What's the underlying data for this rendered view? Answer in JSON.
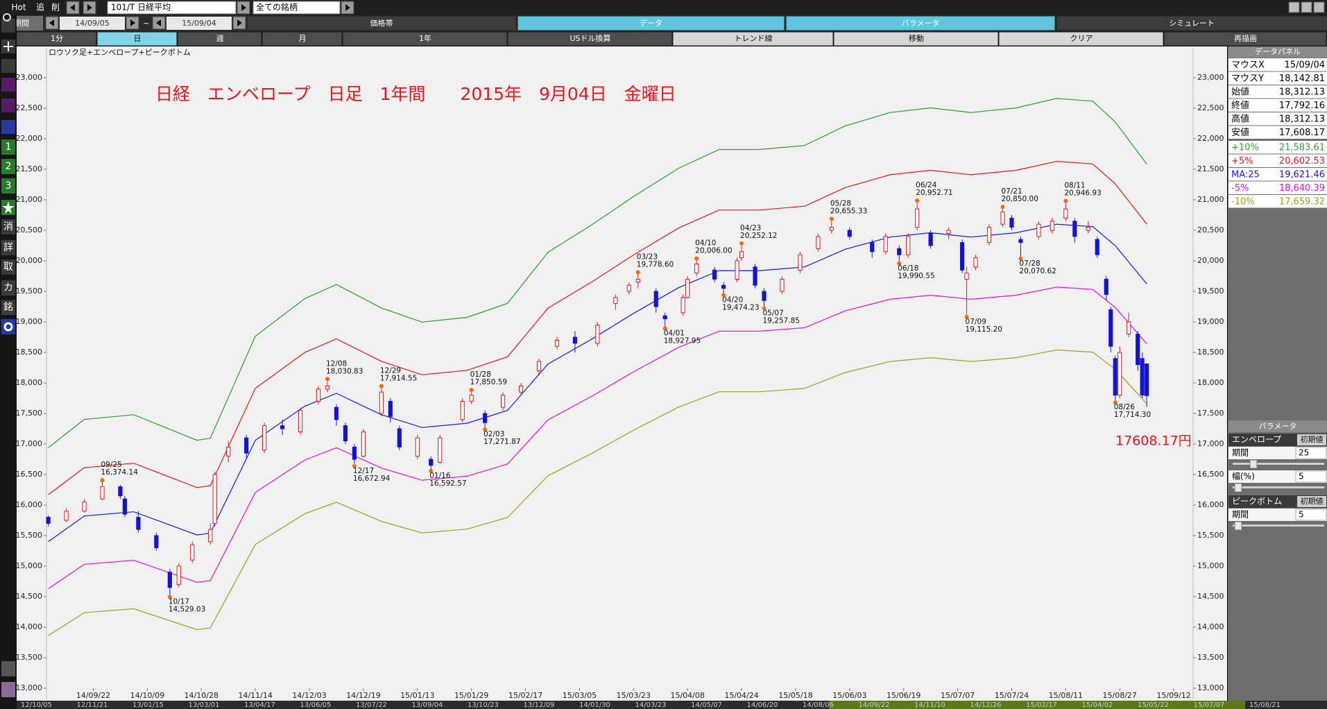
{
  "toolbar": {
    "hot": "Hot",
    "add": "追",
    "del": "削",
    "symbol": "101/T 日経平均",
    "universe": "全ての銘柄",
    "period_label": "期間",
    "from": "14/09/05",
    "tilde": "~",
    "to": "15/09/04",
    "tabs": [
      "価格帯",
      "データ",
      "パラメータ",
      "シミュレート"
    ],
    "buttons": [
      "1分",
      "日",
      "週",
      "月",
      "1年",
      "USドル換算",
      "トレンド線",
      "移動",
      "クリア",
      "再描画"
    ]
  },
  "sidebar": [
    "1",
    "2",
    "3",
    "消",
    "詳",
    "取",
    "カ",
    "銘"
  ],
  "chart_data": {
    "type": "candlestick",
    "label": "ロウソク足+エンベロープ+ピークボトム",
    "title": "日経　エンベロープ　日足　1年間　　2015年　9月04日　金曜日",
    "price_label": "17608.17円",
    "xlim": [
      -0.4,
      254.3
    ],
    "ylim": [
      12800,
      23500
    ],
    "yticks": [
      {
        "value": 13000,
        "label": "13,000"
      },
      {
        "value": 13500,
        "label": "13,500"
      },
      {
        "value": 14000,
        "label": "14,000"
      },
      {
        "value": 14500,
        "label": "14,500"
      },
      {
        "value": 15000,
        "label": "15,000"
      },
      {
        "value": 15500,
        "label": "15,500"
      },
      {
        "value": 16000,
        "label": "16,000"
      },
      {
        "value": 16500,
        "label": "16,500"
      },
      {
        "value": 17000,
        "label": "17,000"
      },
      {
        "value": 17500,
        "label": "17,500"
      },
      {
        "value": 18000,
        "label": "18,000"
      },
      {
        "value": 18500,
        "label": "18,500"
      },
      {
        "value": 19000,
        "label": "19,000"
      },
      {
        "value": 19500,
        "label": "19,500"
      },
      {
        "value": 20000,
        "label": "20,000"
      },
      {
        "value": 20500,
        "label": "20,500"
      },
      {
        "value": 21000,
        "label": "21,000"
      },
      {
        "value": 21500,
        "label": "21,500"
      },
      {
        "value": 22000,
        "label": "22,000"
      },
      {
        "value": 22500,
        "label": "22,500"
      },
      {
        "value": 23000,
        "label": "23,000"
      }
    ],
    "xticks": [
      {
        "value": 10,
        "label": "14/09/22"
      },
      {
        "value": 22,
        "label": "14/10/09"
      },
      {
        "value": 34,
        "label": "14/10/28"
      },
      {
        "value": 46,
        "label": "14/11/14"
      },
      {
        "value": 58,
        "label": "14/12/03"
      },
      {
        "value": 70,
        "label": "14/12/19"
      },
      {
        "value": 82,
        "label": "15/01/13"
      },
      {
        "value": 94,
        "label": "15/01/29"
      },
      {
        "value": 106,
        "label": "15/02/17"
      },
      {
        "value": 118,
        "label": "15/03/05"
      },
      {
        "value": 130,
        "label": "15/03/23"
      },
      {
        "value": 142,
        "label": "15/04/08"
      },
      {
        "value": 154,
        "label": "15/04/24"
      },
      {
        "value": 166,
        "label": "15/05/18"
      },
      {
        "value": 178,
        "label": "15/06/03"
      },
      {
        "value": 190,
        "label": "15/06/19"
      },
      {
        "value": 202,
        "label": "15/07/07"
      },
      {
        "value": 214,
        "label": "15/07/24"
      },
      {
        "value": 226,
        "label": "15/08/11"
      },
      {
        "value": 238,
        "label": "15/08/27"
      },
      {
        "value": 250,
        "label": "15/09/12"
      }
    ],
    "up_color": "#e01818",
    "down_color": "#1414d0",
    "peak_color": "#ff6a00",
    "candles": {
      "x": [
        0,
        4,
        8,
        12,
        16,
        17,
        20,
        24,
        27,
        29,
        32,
        36,
        37,
        40,
        44,
        48,
        52,
        56,
        60,
        62,
        64,
        66,
        68,
        70,
        74,
        76,
        78,
        82,
        85,
        87,
        92,
        94,
        97,
        101,
        105,
        109,
        113,
        117,
        122,
        126,
        129,
        131,
        135,
        137,
        141,
        142,
        144,
        148,
        150,
        153,
        154,
        157,
        159,
        163,
        167,
        171,
        174,
        178,
        183,
        186,
        189,
        191,
        193,
        196,
        200,
        203,
        204,
        206,
        209,
        212,
        214,
        216,
        220,
        223,
        226,
        228,
        231,
        233,
        235,
        236,
        237,
        238,
        240,
        242,
        243,
        244
      ],
      "open": [
        15800,
        15750,
        15900,
        16100,
        16300,
        16100,
        15800,
        15500,
        14900,
        14700,
        15100,
        15400,
        15700,
        16800,
        17100,
        16900,
        17300,
        17200,
        17700,
        17900,
        17600,
        17300,
        16950,
        16800,
        17500,
        17700,
        17250,
        16800,
        16750,
        16700,
        17400,
        17700,
        17500,
        17600,
        17850,
        18200,
        18600,
        18750,
        18650,
        19300,
        19500,
        19650,
        19500,
        19100,
        19150,
        19400,
        19800,
        19850,
        19600,
        19700,
        20050,
        19900,
        19500,
        19500,
        19850,
        20200,
        20500,
        20500,
        20300,
        20150,
        20200,
        20100,
        20550,
        20450,
        20450,
        20300,
        19700,
        19900,
        20300,
        20600,
        20700,
        20350,
        20400,
        20500,
        20700,
        20650,
        20500,
        20350,
        19700,
        19200,
        18400,
        17800,
        18800,
        18800,
        18400,
        18312.13
      ],
      "high": [
        15830,
        15950,
        16100,
        16374.14,
        16330,
        16150,
        15900,
        15550,
        14950,
        15050,
        15400,
        15700,
        16550,
        17050,
        17150,
        17350,
        17400,
        17600,
        17950,
        18030.83,
        17650,
        17350,
        17000,
        17250,
        17914.55,
        17750,
        17300,
        17150,
        16800,
        17150,
        17750,
        17850.59,
        17550,
        17850,
        18000,
        18400,
        18750,
        18850,
        19000,
        19450,
        19650,
        19778.6,
        19550,
        19150,
        19450,
        19750,
        20006,
        19900,
        19650,
        20050,
        20252.12,
        19950,
        19550,
        19750,
        20150,
        20450,
        20655.33,
        20550,
        20350,
        20450,
        20250,
        20450,
        20952.71,
        20500,
        20550,
        20350,
        19900,
        20100,
        20600,
        20850,
        20750,
        20400,
        20650,
        20700,
        20946.93,
        20700,
        20650,
        20400,
        19750,
        19250,
        18450,
        18600,
        19150,
        18850,
        18500,
        18312.13
      ],
      "low": [
        15650,
        15720,
        15880,
        16080,
        16100,
        15800,
        15550,
        15250,
        14529.03,
        14650,
        15050,
        15350,
        15650,
        16700,
        16750,
        16850,
        17150,
        17150,
        17650,
        17850,
        17300,
        17000,
        16672.94,
        16780,
        17450,
        17350,
        16900,
        16750,
        16592.57,
        16680,
        17350,
        17650,
        17271.87,
        17550,
        17800,
        18150,
        18550,
        18500,
        18600,
        19200,
        19450,
        19550,
        19150,
        18927.95,
        19100,
        19380,
        19750,
        19650,
        19474.23,
        19650,
        20000,
        19550,
        19257.85,
        19450,
        19800,
        20150,
        20450,
        20350,
        20050,
        20100,
        19990.55,
        20050,
        20500,
        20200,
        20350,
        19800,
        19115.2,
        19850,
        20250,
        20550,
        20500,
        20070.62,
        20350,
        20450,
        20650,
        20300,
        20450,
        20050,
        19350,
        18500,
        17714.3,
        17750,
        18750,
        18200,
        17750,
        17608.17
      ],
      "close": [
        15700,
        15900,
        16050,
        16300,
        16150,
        15850,
        15600,
        15300,
        14650,
        15000,
        15350,
        15600,
        16500,
        16950,
        16850,
        17300,
        17250,
        17550,
        17900,
        17950,
        17400,
        17050,
        16750,
        17200,
        17850,
        17450,
        16950,
        17100,
        16650,
        17100,
        17700,
        17800,
        17350,
        17800,
        17950,
        18350,
        18700,
        18650,
        18950,
        19400,
        19600,
        19700,
        19250,
        19050,
        19400,
        19700,
        19950,
        19700,
        19550,
        20000,
        20150,
        19600,
        19350,
        19700,
        20100,
        20400,
        20550,
        20400,
        20150,
        20400,
        20100,
        20400,
        20850,
        20250,
        20500,
        19850,
        19800,
        20050,
        20550,
        20800,
        20550,
        20300,
        20600,
        20650,
        20850,
        20400,
        20550,
        20100,
        19450,
        18600,
        17800,
        18500,
        19000,
        18300,
        17800,
        17792.16
      ]
    },
    "line_x": [
      0,
      8,
      19,
      33,
      36,
      46,
      57,
      64,
      74,
      83,
      93,
      102,
      111,
      121,
      130,
      140,
      149,
      158,
      168,
      177,
      187,
      196,
      205,
      215,
      224,
      232,
      237,
      244
    ],
    "series": [
      {
        "name": "+10%",
        "color": "#2e9e2e",
        "values": [
          16940,
          17402,
          17479,
          17061,
          17094,
          18766,
          19382,
          19613,
          19228,
          18997,
          19074,
          19305,
          20141,
          20603,
          21054,
          21516,
          21824,
          21824,
          21890,
          22209,
          22429,
          22506,
          22429,
          22506,
          22660,
          22616,
          22275,
          21583.61
        ]
      },
      {
        "name": "+5%",
        "color": "#e01818",
        "values": [
          16170,
          16611,
          16685,
          16286,
          16317,
          17913,
          18501,
          18722,
          18354,
          18134,
          18207,
          18428,
          19226,
          19667,
          20097,
          20538,
          20832,
          20832,
          20895,
          21200,
          21410,
          21483,
          21410,
          21483,
          21630,
          21588,
          21263,
          20602.53
        ]
      },
      {
        "name": "MA:25",
        "color": "#1818e0",
        "values": [
          15400,
          15820,
          15890,
          15510,
          15540,
          17060,
          17620,
          17830,
          17480,
          17270,
          17340,
          17550,
          18310,
          18730,
          19140,
          19560,
          19840,
          19840,
          19900,
          20190,
          20390,
          20460,
          20390,
          20460,
          20600,
          20560,
          20250,
          19621.46
        ]
      },
      {
        "name": "-5%",
        "color": "#e010e0",
        "values": [
          14630,
          15029,
          15096,
          14735,
          14763,
          16207,
          16739,
          16939,
          16606,
          16407,
          16473,
          16673,
          17395,
          17794,
          18183,
          18582,
          18848,
          18848,
          18905,
          19181,
          19371,
          19437,
          19371,
          19437,
          19570,
          19532,
          19238,
          18640.39
        ]
      },
      {
        "name": "-10%",
        "color": "#a0a020",
        "values": [
          13860,
          14238,
          14301,
          13959,
          13986,
          15354,
          15858,
          16047,
          15732,
          15543,
          15606,
          15795,
          16479,
          16857,
          17226,
          17604,
          17856,
          17856,
          17910,
          18171,
          18351,
          18414,
          18351,
          18414,
          18540,
          18504,
          18225,
          17659.32
        ]
      }
    ],
    "peaks": [
      {
        "date": "09/25",
        "label": "16,374.14",
        "value": 16374.14,
        "x": 12,
        "position": "above"
      },
      {
        "date": "10/17",
        "label": "14,529.03",
        "value": 14529.03,
        "x": 27,
        "position": "below"
      },
      {
        "date": "12/08",
        "label": "18,030.83",
        "value": 18030.83,
        "x": 62,
        "position": "above"
      },
      {
        "date": "12/17",
        "label": "16,672.94",
        "value": 16672.94,
        "x": 68,
        "position": "below"
      },
      {
        "date": "12/29",
        "label": "17,914.55",
        "value": 17914.55,
        "x": 74,
        "position": "above"
      },
      {
        "date": "01/16",
        "label": "16,592.57",
        "value": 16592.57,
        "x": 85,
        "position": "below"
      },
      {
        "date": "01/28",
        "label": "17,850.59",
        "value": 17850.59,
        "x": 94,
        "position": "above"
      },
      {
        "date": "02/03",
        "label": "17,271.87",
        "value": 17271.87,
        "x": 97,
        "position": "below"
      },
      {
        "date": "03/23",
        "label": "19,778.60",
        "value": 19778.6,
        "x": 131,
        "position": "above"
      },
      {
        "date": "04/01",
        "label": "18,927.95",
        "value": 18927.95,
        "x": 137,
        "position": "below"
      },
      {
        "date": "04/10",
        "label": "20,006.00",
        "value": 20006,
        "x": 144,
        "position": "above"
      },
      {
        "date": "04/20",
        "label": "19,474.23",
        "value": 19474.23,
        "x": 150,
        "position": "below"
      },
      {
        "date": "04/23",
        "label": "20,252.12",
        "value": 20252.12,
        "x": 154,
        "position": "above"
      },
      {
        "date": "05/07",
        "label": "19,257.85",
        "value": 19257.85,
        "x": 159,
        "position": "below"
      },
      {
        "date": "05/28",
        "label": "20,655.33",
        "value": 20655.33,
        "x": 174,
        "position": "above"
      },
      {
        "date": "06/18",
        "label": "19,990.55",
        "value": 19990.55,
        "x": 189,
        "position": "below"
      },
      {
        "date": "06/24",
        "label": "20,952.71",
        "value": 20952.71,
        "x": 193,
        "position": "above"
      },
      {
        "date": "07/09",
        "label": "19,115.20",
        "value": 19115.2,
        "x": 204,
        "position": "below"
      },
      {
        "date": "07/21",
        "label": "20,850.00",
        "value": 20850,
        "x": 212,
        "position": "above"
      },
      {
        "date": "07/28",
        "label": "20,070.62",
        "value": 20070.62,
        "x": 216,
        "position": "below"
      },
      {
        "date": "08/11",
        "label": "20,946.93",
        "value": 20946.93,
        "x": 226,
        "position": "above"
      },
      {
        "date": "08/26",
        "label": "17,714.30",
        "value": 17714.3,
        "x": 237,
        "position": "below"
      }
    ]
  },
  "data_panel": {
    "title": "データパネル",
    "rows": [
      {
        "label": "マウスX",
        "value": "15/09/04"
      },
      {
        "label": "マウスY",
        "value": "18,142.81"
      },
      {
        "label": "始値",
        "value": "18,312.13"
      },
      {
        "label": "終値",
        "value": "17,792.16"
      },
      {
        "label": "高値",
        "value": "18,312.13"
      },
      {
        "label": "安値",
        "value": "17,608.17"
      }
    ],
    "envelope_values": [
      "21,583.61",
      "20,602.53",
      "19,621.46",
      "18,640.39",
      "17,659.32"
    ]
  },
  "parameter_panel": {
    "title": "パラメータ",
    "sections": [
      {
        "name": "エンベロープ",
        "reset": "初期値",
        "params": [
          {
            "label": "期間",
            "value": "25"
          },
          {
            "label": "幅(%)",
            "value": "5"
          }
        ]
      },
      {
        "name": "ピークボトム",
        "reset": "初期値",
        "params": [
          {
            "label": "期間",
            "value": "5"
          }
        ]
      }
    ]
  },
  "scrollbar": [
    "12/10/05",
    "12/11/21",
    "13/01/15",
    "13/03/01",
    "13/04/17",
    "13/06/05",
    "13/07/22",
    "13/09/04",
    "13/10/23",
    "13/12/09",
    "14/01/30",
    "14/03/23",
    "14/05/07",
    "14/06/20",
    "14/08/06",
    "14/09/22",
    "14/11/10",
    "14/12/26",
    "15/02/17",
    "15/04/02",
    "15/05/22",
    "15/07/07",
    "15/08/21"
  ]
}
